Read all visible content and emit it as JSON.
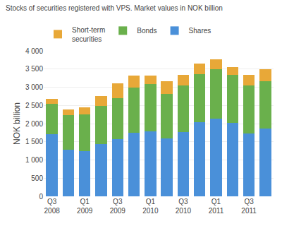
{
  "chart_data": {
    "type": "bar",
    "title": "Stocks of securities registered with VPS. Market values in NOK billion",
    "ylabel": "NOK billion",
    "categories": [
      "Q3\n2008",
      null,
      "Q1\n2009",
      null,
      "Q3\n2009",
      null,
      "Q1\n2010",
      null,
      "Q3\n2010",
      null,
      "Q1\n2011",
      null,
      "Q3\n2011",
      null
    ],
    "series": [
      {
        "name": "Shares",
        "color": "#4a90d9",
        "values": [
          1700,
          1280,
          1250,
          1430,
          1570,
          1750,
          1790,
          1600,
          1760,
          2040,
          2130,
          2010,
          1720,
          1870
        ]
      },
      {
        "name": "Bonds",
        "color": "#6ab04c",
        "values": [
          850,
          950,
          1000,
          1060,
          1130,
          1250,
          1300,
          1220,
          1280,
          1310,
          1360,
          1330,
          1330,
          1300
        ]
      },
      {
        "name": "Short-term\nsecurities",
        "color": "#e8a838",
        "values": [
          130,
          160,
          200,
          270,
          400,
          330,
          230,
          340,
          300,
          310,
          280,
          220,
          290,
          330
        ]
      }
    ],
    "stacked": true,
    "ylim": [
      0,
      4000
    ],
    "yticks": [
      0,
      500,
      {
        "value": 1000,
        "label": "1 000"
      },
      {
        "value": 1500,
        "label": "1 500"
      },
      {
        "value": 2000,
        "label": "2 000"
      },
      {
        "value": 2500,
        "label": "2 500"
      },
      {
        "value": 3000,
        "label": "3 000"
      },
      {
        "value": 3500,
        "label": "3 500"
      },
      {
        "value": 4000,
        "label": "4 000"
      }
    ],
    "grid": true,
    "legend": "top"
  }
}
